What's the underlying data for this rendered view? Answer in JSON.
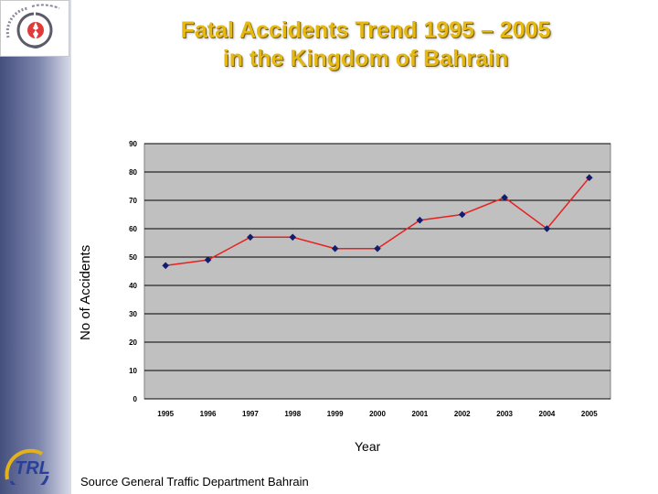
{
  "slide": {
    "title_line1": "Fatal Accidents Trend 1995 – 2005",
    "title_line2": "in the Kingdom of Bahrain",
    "source": "Source General Traffic Department Bahrain",
    "logo_text": "TRL"
  },
  "colors": {
    "title": "#e6b814",
    "line": "#e8211f",
    "marker": "#131d6e",
    "plot_bg": "#c0c0c0"
  },
  "chart_data": {
    "type": "line",
    "title": "",
    "xlabel": "Year",
    "ylabel": "No of Accidents",
    "categories": [
      "1995",
      "1996",
      "1997",
      "1998",
      "1999",
      "2000",
      "2001",
      "2002",
      "2003",
      "2004",
      "2005"
    ],
    "series": [
      {
        "values": [
          47,
          49,
          57,
          57,
          53,
          53,
          63,
          65,
          71,
          60,
          78
        ]
      }
    ],
    "ylim": [
      0,
      90
    ],
    "yticks": [
      0,
      10,
      20,
      30,
      40,
      50,
      60,
      70,
      80,
      90
    ],
    "grid": true,
    "legend": "none"
  }
}
